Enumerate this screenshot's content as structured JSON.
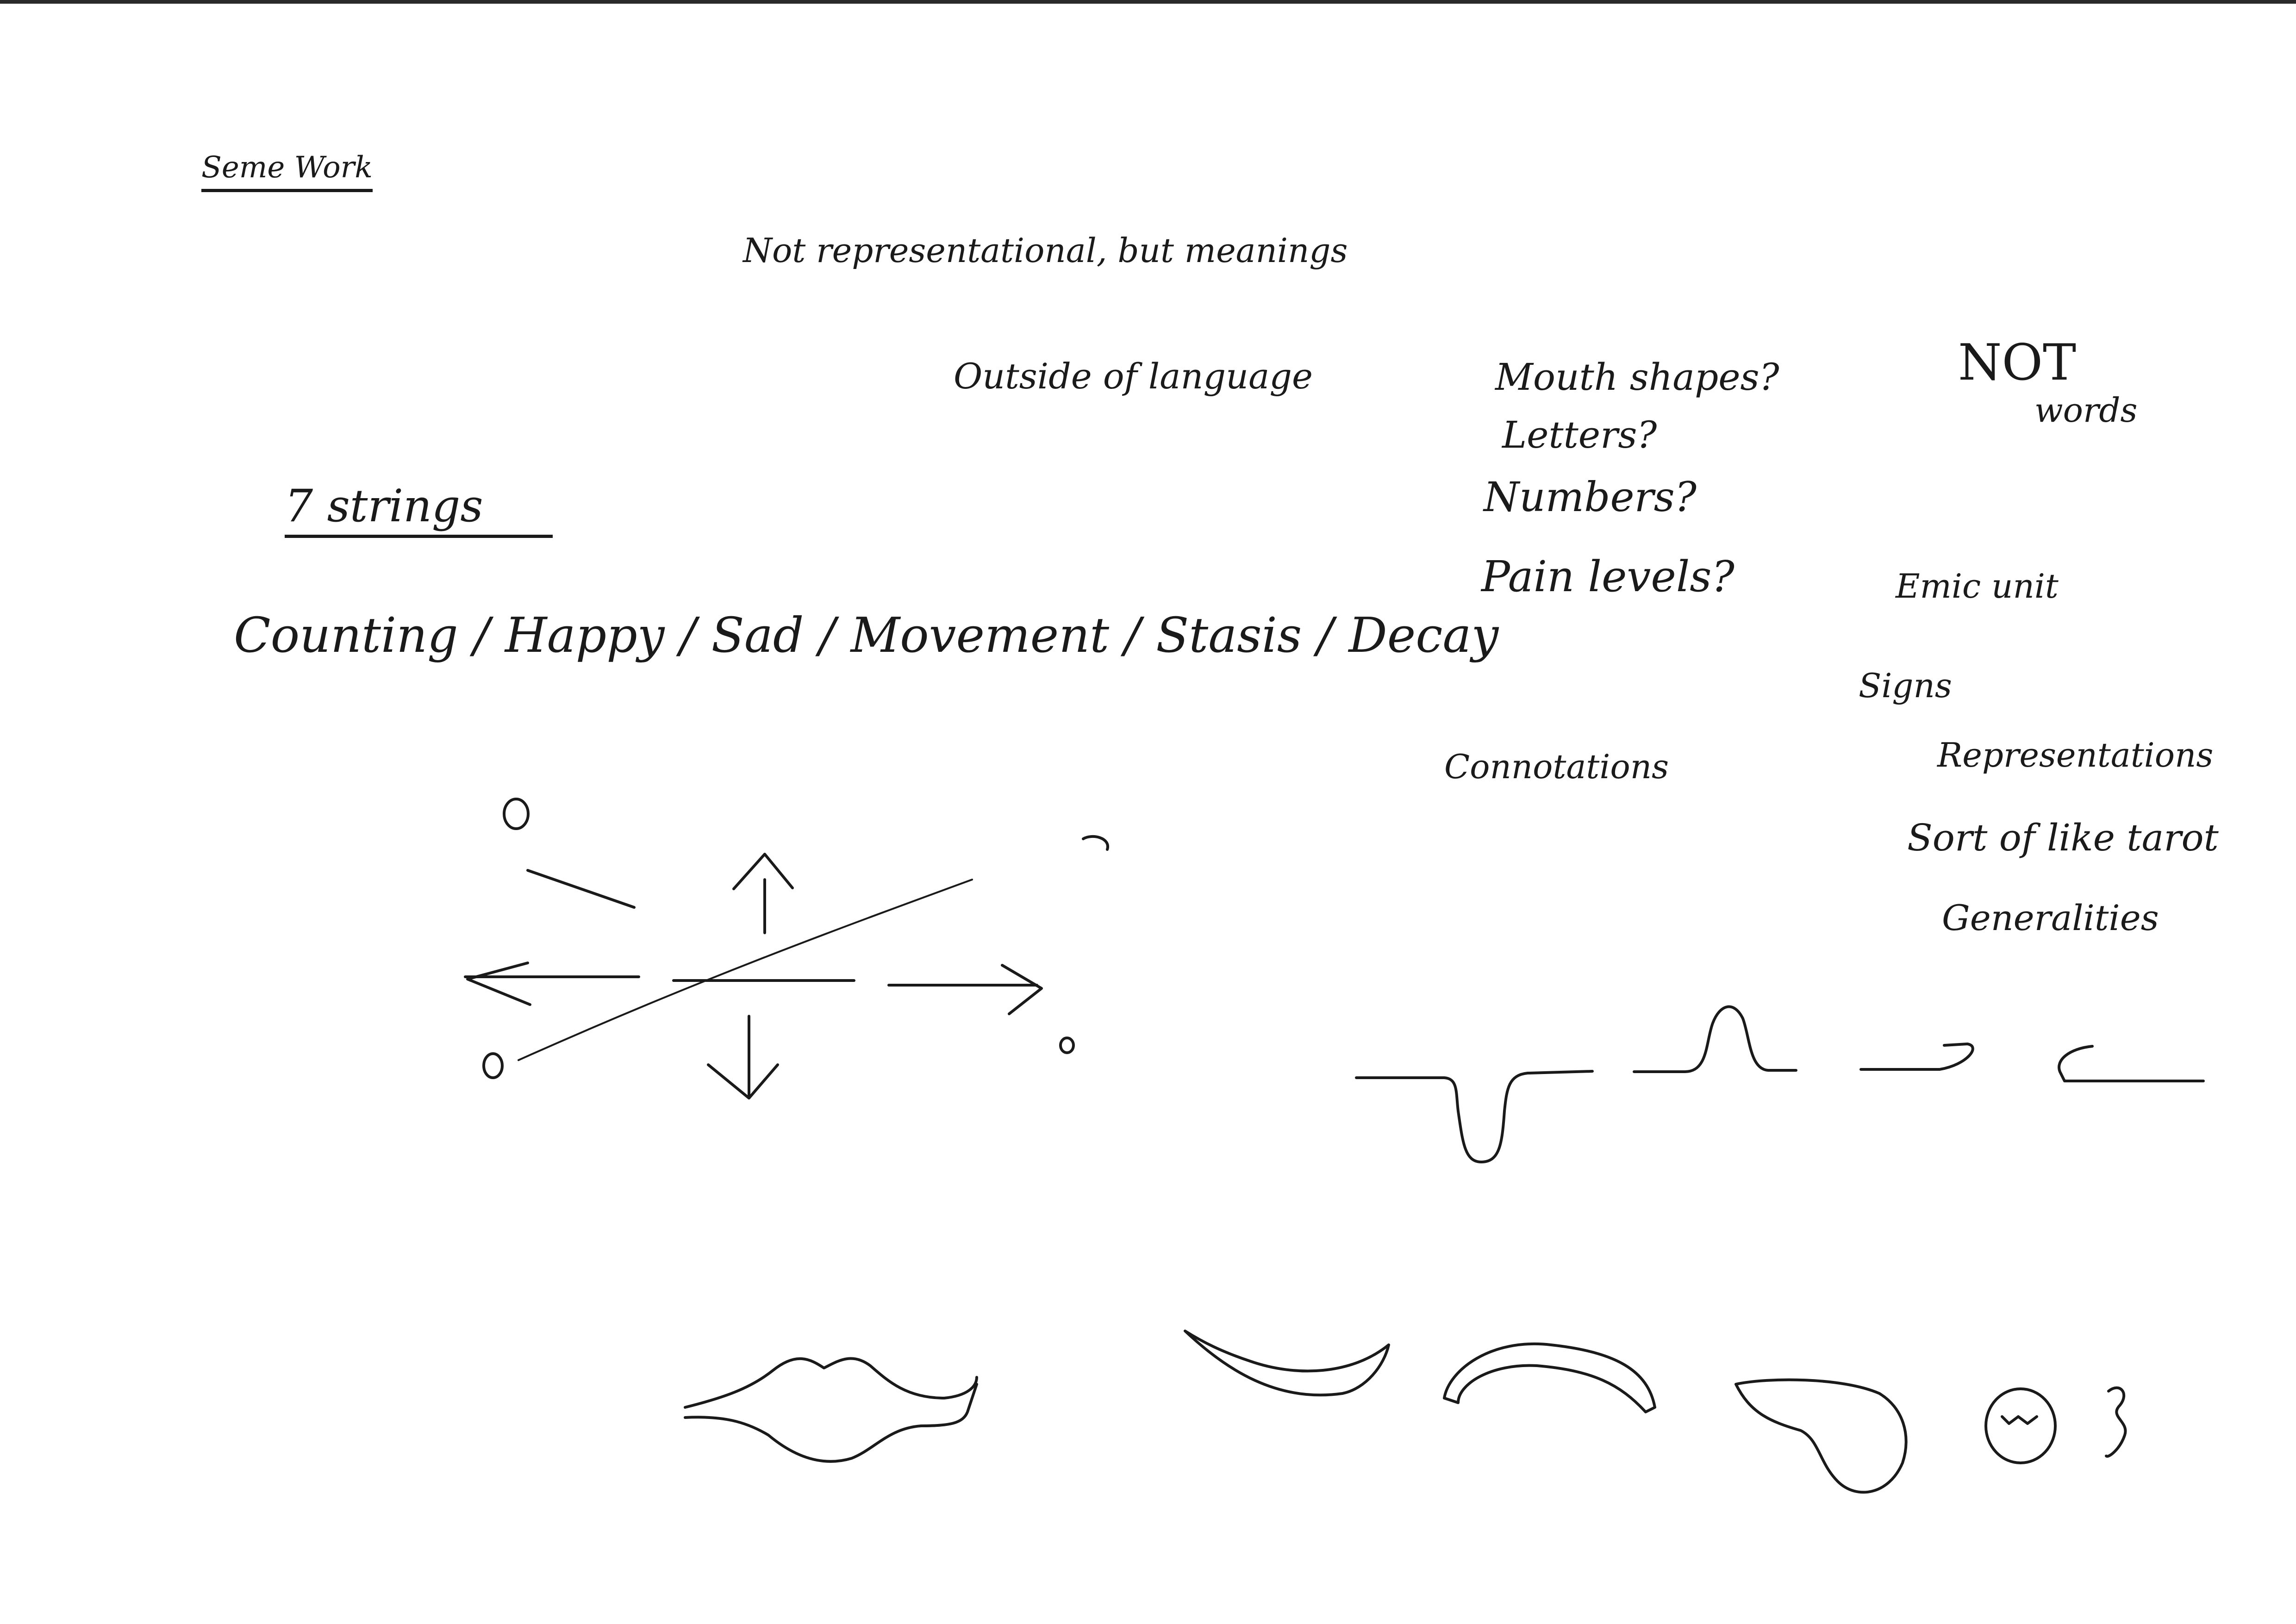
{
  "heading": "Seme Work",
  "notes": {
    "not_representational": "Not representational, but meanings",
    "outside_language": "Outside of language",
    "seven_strings": "7 strings",
    "strings_list": "Counting / Happy / Sad / Movement / Stasis / Decay",
    "mouth_shapes": "Mouth shapes?",
    "letters": "Letters?",
    "numbers": "Numbers?",
    "pain_levels": "Pain levels?",
    "not_big": "NOT",
    "words": "words",
    "emic_unit": "Emic unit",
    "signs": "Signs",
    "representations": "Representations",
    "tarot": "Sort of like tarot",
    "generalities": "Generalities",
    "connotations": "Connotations"
  },
  "drawings": {
    "arrows": "arrows-sketch-icon",
    "string_glyphs": "string-glyphs-sketch-icon",
    "mouths": "mouth-shapes-sketch-icon"
  }
}
